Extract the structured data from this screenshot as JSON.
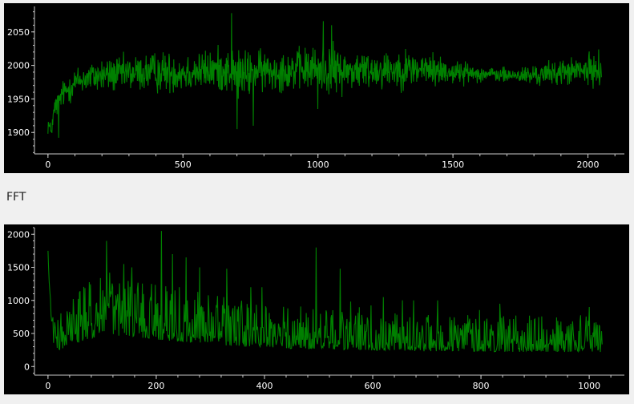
{
  "fft_label": "FFT",
  "chart_data": [
    {
      "type": "line",
      "title": "",
      "xlabel": "",
      "ylabel": "",
      "xlim": [
        -50,
        2135
      ],
      "ylim": [
        1868,
        2088
      ],
      "xticks": [
        0,
        500,
        1000,
        1500,
        2000
      ],
      "yticks": [
        1900,
        1950,
        2000,
        2050
      ],
      "grid": false,
      "series_color": "#008000",
      "series": [
        {
          "x": [
            0,
            10,
            25,
            50,
            75,
            100,
            150,
            200,
            300,
            400,
            500,
            600,
            650,
            680,
            700,
            730,
            760,
            800,
            900,
            1000,
            1050,
            1100,
            1200,
            1300,
            1400,
            1500,
            1600,
            1700,
            1800,
            1900,
            2000,
            2050
          ],
          "values": [
            1915,
            1900,
            1935,
            1955,
            1965,
            1975,
            1982,
            1985,
            1988,
            1990,
            1990,
            1992,
            1995,
            1990,
            1988,
            1985,
            1990,
            1992,
            1993,
            1995,
            1993,
            1992,
            1993,
            1995,
            1994,
            1990,
            1988,
            1985,
            1985,
            1990,
            1992,
            1995
          ],
          "spread": [
            25,
            20,
            25,
            25,
            30,
            30,
            30,
            35,
            35,
            40,
            40,
            40,
            45,
            45,
            50,
            50,
            40,
            40,
            40,
            45,
            50,
            40,
            38,
            38,
            35,
            25,
            15,
            15,
            20,
            25,
            30,
            35
          ]
        }
      ]
    },
    {
      "type": "line",
      "title": "",
      "xlabel": "",
      "ylabel": "",
      "xlim": [
        -25,
        1065
      ],
      "ylim": [
        -130,
        2100
      ],
      "xticks": [
        0,
        200,
        400,
        600,
        800,
        1000
      ],
      "yticks": [
        0,
        500,
        1000,
        1500,
        2000
      ],
      "grid": false,
      "series_color": "#008000",
      "series": [
        {
          "x": [
            0,
            2,
            5,
            10,
            20,
            50,
            100,
            150,
            200,
            250,
            300,
            350,
            400,
            450,
            500,
            550,
            600,
            650,
            700,
            750,
            800,
            850,
            900,
            950,
            1000,
            1024
          ],
          "values": [
            1750,
            1300,
            900,
            450,
            400,
            550,
            750,
            700,
            650,
            600,
            550,
            500,
            480,
            450,
            450,
            420,
            400,
            400,
            380,
            380,
            380,
            370,
            380,
            370,
            380,
            350
          ],
          "spread": [
            0,
            0,
            100,
            150,
            250,
            350,
            450,
            400,
            400,
            380,
            350,
            330,
            300,
            300,
            300,
            280,
            260,
            260,
            250,
            250,
            250,
            250,
            260,
            250,
            250,
            220
          ],
          "peaks": [
            [
              108,
              1900
            ],
            [
              140,
              1550
            ],
            [
              155,
              1500
            ],
            [
              210,
              2050
            ],
            [
              230,
              1700
            ],
            [
              255,
              1650
            ],
            [
              280,
              1500
            ],
            [
              330,
              1480
            ],
            [
              375,
              1200
            ],
            [
              395,
              1200
            ],
            [
              495,
              1800
            ],
            [
              540,
              1480
            ],
            [
              620,
              1050
            ],
            [
              675,
              1000
            ],
            [
              720,
              1000
            ],
            [
              835,
              950
            ],
            [
              1000,
              900
            ]
          ]
        }
      ]
    }
  ]
}
